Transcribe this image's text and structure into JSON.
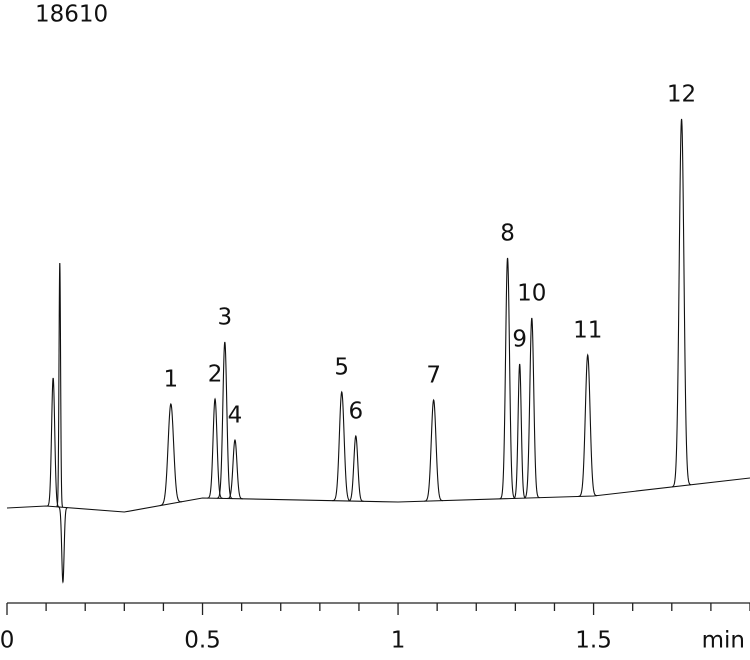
{
  "chart_data": {
    "type": "line",
    "title": "18610",
    "x_label": "min",
    "xlim": [
      0,
      1.9
    ],
    "xticks": [
      0,
      0.5,
      1,
      1.5
    ],
    "x_minor_ticks": [
      0.1,
      0.2,
      0.3,
      0.4,
      0.6,
      0.7,
      0.8,
      0.9,
      1.1,
      1.2,
      1.3,
      1.4,
      1.6,
      1.7,
      1.8,
      1.9
    ],
    "ylim": [
      -90,
      500
    ],
    "color": "#111111",
    "baseline": {
      "x": [
        0,
        0.1,
        0.3,
        0.5,
        1,
        1.5,
        1.9
      ],
      "values": [
        -8,
        -6,
        -12,
        2,
        -2,
        4,
        22
      ]
    },
    "peaks": {
      "labels": [
        null,
        null,
        null,
        "1",
        "2",
        "3",
        "4",
        "5",
        "6",
        "7",
        "8",
        "9",
        "10",
        "11",
        "12"
      ],
      "x": [
        0.118,
        0.135,
        0.143,
        0.419,
        0.532,
        0.557,
        0.583,
        0.856,
        0.892,
        1.091,
        1.28,
        1.311,
        1.342,
        1.485,
        1.725
      ],
      "values": [
        122,
        237,
        -82,
        96,
        101,
        158,
        60,
        108,
        64,
        100,
        242,
        136,
        182,
        145,
        381
      ],
      "widths": [
        0.004,
        0.002,
        0.003,
        0.007,
        0.005,
        0.005,
        0.005,
        0.006,
        0.005,
        0.006,
        0.005,
        0.004,
        0.005,
        0.006,
        0.006
      ]
    }
  }
}
